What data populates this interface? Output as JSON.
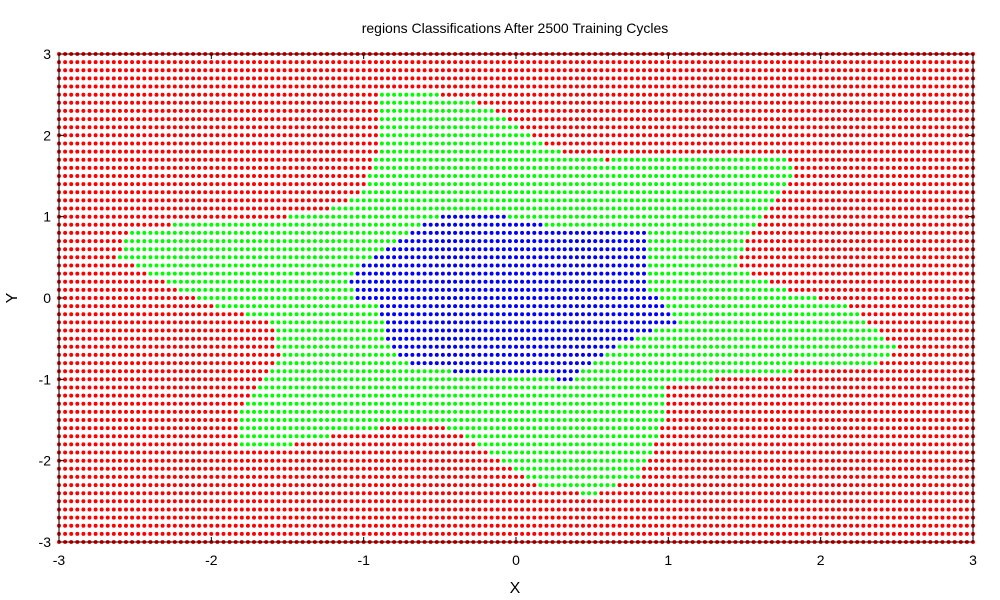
{
  "chart_data": {
    "type": "scatter",
    "title": "regions Classifications After 2500 Training Cycles",
    "xlabel": "X",
    "ylabel": "Y",
    "xlim": [
      -3,
      3
    ],
    "ylim": [
      -3,
      3
    ],
    "xticks": [
      -3,
      -2,
      -1,
      0,
      1,
      2,
      3
    ],
    "yticks": [
      -3,
      -2,
      -1,
      0,
      1,
      2,
      3
    ],
    "xtick_labels": [
      "-3",
      "-2",
      "-1",
      "0",
      "1",
      "2",
      "3"
    ],
    "ytick_labels": [
      "-3",
      "-2",
      "-1",
      "0",
      "1",
      "2",
      "3"
    ],
    "grid": false,
    "legend": "none",
    "grid_sampling": {
      "x_points": 151,
      "y_points": 61
    },
    "series": [
      {
        "class": "outer",
        "color": "#ff0000",
        "description_region": "all points outside the green region"
      },
      {
        "class": "middle",
        "color": "#00ff00",
        "region_polygon": [
          [
            -0.88,
            2.52
          ],
          [
            -0.7,
            2.56
          ],
          [
            -0.48,
            2.5
          ],
          [
            -0.2,
            2.38
          ],
          [
            0.0,
            2.1
          ],
          [
            0.3,
            1.8
          ],
          [
            0.6,
            1.7
          ],
          [
            1.0,
            1.72
          ],
          [
            1.4,
            1.78
          ],
          [
            1.8,
            1.7
          ],
          [
            1.82,
            1.45
          ],
          [
            1.65,
            1.1
          ],
          [
            1.5,
            0.7
          ],
          [
            1.45,
            0.35
          ],
          [
            1.8,
            0.1
          ],
          [
            2.2,
            -0.1
          ],
          [
            2.5,
            -0.6
          ],
          [
            2.4,
            -0.8
          ],
          [
            1.8,
            -0.9
          ],
          [
            1.3,
            -1.0
          ],
          [
            1.0,
            -1.1
          ],
          [
            0.95,
            -1.7
          ],
          [
            0.8,
            -2.2
          ],
          [
            0.5,
            -2.42
          ],
          [
            0.2,
            -2.35
          ],
          [
            -0.2,
            -1.85
          ],
          [
            -0.5,
            -1.55
          ],
          [
            -0.9,
            -1.6
          ],
          [
            -1.2,
            -1.7
          ],
          [
            -1.6,
            -1.85
          ],
          [
            -1.8,
            -1.85
          ],
          [
            -1.8,
            -1.35
          ],
          [
            -1.55,
            -0.7
          ],
          [
            -1.6,
            -0.3
          ],
          [
            -2.0,
            -0.1
          ],
          [
            -2.6,
            0.5
          ],
          [
            -2.55,
            0.8
          ],
          [
            -2.0,
            0.98
          ],
          [
            -1.5,
            1.0
          ],
          [
            -1.2,
            1.1
          ],
          [
            -1.0,
            1.3
          ],
          [
            -0.9,
            1.8
          ]
        ]
      },
      {
        "class": "inner",
        "color": "#0000ff",
        "region_polygon": [
          [
            -1.05,
            0.38
          ],
          [
            -0.75,
            0.75
          ],
          [
            -0.45,
            1.05
          ],
          [
            -0.25,
            1.1
          ],
          [
            0.0,
            0.98
          ],
          [
            0.2,
            0.9
          ],
          [
            0.3,
            0.82
          ],
          [
            0.85,
            0.82
          ],
          [
            0.85,
            0.1
          ],
          [
            1.0,
            -0.1
          ],
          [
            1.05,
            -0.3
          ],
          [
            0.7,
            -0.55
          ],
          [
            0.5,
            -0.8
          ],
          [
            0.35,
            -1.02
          ],
          [
            0.0,
            -0.95
          ],
          [
            -0.4,
            -0.9
          ],
          [
            -0.75,
            -0.78
          ],
          [
            -0.85,
            -0.5
          ],
          [
            -0.9,
            -0.1
          ],
          [
            -1.05,
            0.0
          ],
          [
            -1.1,
            0.2
          ]
        ]
      }
    ]
  }
}
